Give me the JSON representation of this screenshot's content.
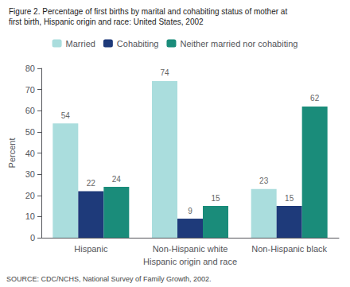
{
  "chart_data": {
    "type": "bar",
    "title": "Figure 2. Percentage of first births by marital and cohabiting status of mother at",
    "subtitle": "first birth, Hispanic origin and race: United States, 2002",
    "annotations": [
      "SOURCE: CDC/NCHS, National Survey of Family Growth, 2002."
    ],
    "xlabel": "Hispanic origin and race",
    "ylabel": "Percent",
    "categories": [
      "Hispanic",
      "Non-Hispanic white",
      "Non-Hispanic black"
    ],
    "series": [
      {
        "name": "Married",
        "color": "#aadddd",
        "values": [
          54,
          74,
          23
        ]
      },
      {
        "name": "Cohabiting",
        "color": "#1e3a7a",
        "values": [
          22,
          9,
          15
        ]
      },
      {
        "name": "Neither married nor cohabiting",
        "color": "#1a8c7a",
        "values": [
          24,
          15,
          62
        ]
      }
    ],
    "ylim": [
      0,
      80
    ],
    "yticks": [
      0,
      10,
      20,
      30,
      40,
      50,
      60,
      70,
      80
    ],
    "grid": false,
    "legend": "top",
    "data_labels": true
  }
}
